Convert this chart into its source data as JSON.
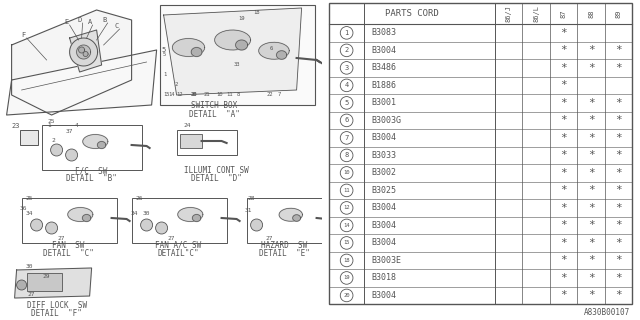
{
  "diagram_id": "A830B00107",
  "bg_color": "#ffffff",
  "line_color": "#555555",
  "table": {
    "header_col": "PARTS CORD",
    "year_cols": [
      "86/J",
      "86/L",
      "87",
      "88",
      "89"
    ],
    "rows": [
      {
        "num": "1",
        "part": "B3083",
        "marks": [
          false,
          false,
          true,
          false,
          false
        ]
      },
      {
        "num": "2",
        "part": "B3004",
        "marks": [
          false,
          false,
          true,
          true,
          true
        ]
      },
      {
        "num": "3",
        "part": "B3486",
        "marks": [
          false,
          false,
          true,
          true,
          true
        ]
      },
      {
        "num": "4",
        "part": "B1886",
        "marks": [
          false,
          false,
          true,
          false,
          false
        ]
      },
      {
        "num": "5",
        "part": "B3001",
        "marks": [
          false,
          false,
          true,
          true,
          true
        ]
      },
      {
        "num": "6",
        "part": "B3003G",
        "marks": [
          false,
          false,
          true,
          true,
          true
        ]
      },
      {
        "num": "7",
        "part": "B3004",
        "marks": [
          false,
          false,
          true,
          true,
          true
        ]
      },
      {
        "num": "8",
        "part": "B3033",
        "marks": [
          false,
          false,
          true,
          true,
          true
        ]
      },
      {
        "num": "10",
        "part": "B3002",
        "marks": [
          false,
          false,
          true,
          true,
          true
        ]
      },
      {
        "num": "11",
        "part": "B3025",
        "marks": [
          false,
          false,
          true,
          true,
          true
        ]
      },
      {
        "num": "12",
        "part": "B3004",
        "marks": [
          false,
          false,
          true,
          true,
          true
        ]
      },
      {
        "num": "14",
        "part": "B3004",
        "marks": [
          false,
          false,
          true,
          true,
          true
        ]
      },
      {
        "num": "15",
        "part": "B3004",
        "marks": [
          false,
          false,
          true,
          true,
          true
        ]
      },
      {
        "num": "18",
        "part": "B3003E",
        "marks": [
          false,
          false,
          true,
          true,
          true
        ]
      },
      {
        "num": "19",
        "part": "B3018",
        "marks": [
          false,
          false,
          true,
          true,
          true
        ]
      },
      {
        "num": "20",
        "part": "B3004",
        "marks": [
          false,
          false,
          true,
          true,
          true
        ]
      }
    ]
  }
}
